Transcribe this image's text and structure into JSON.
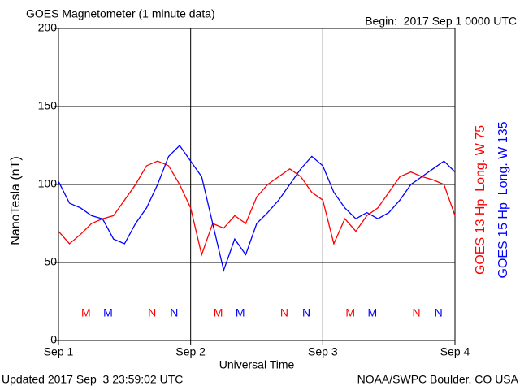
{
  "chart_data": {
    "type": "line",
    "title": "GOES Magnetometer (1 minute data)",
    "subtitle": "Begin:  2017 Sep 1 0000 UTC",
    "y_label": "NanoTesla (nT)",
    "x_label": "Universal Time",
    "footer_left": "Updated 2017 Sep  3 23:59:02 UTC",
    "footer_right": "NOAA/SWPC Boulder, CO USA",
    "xlim": [
      0,
      72
    ],
    "xticks": [
      {
        "value": 0,
        "label": "Sep 1"
      },
      {
        "value": 24,
        "label": "Sep 2"
      },
      {
        "value": 48,
        "label": "Sep 3"
      },
      {
        "value": 72,
        "label": "Sep 4"
      }
    ],
    "ylim": [
      0,
      200
    ],
    "yticks": [
      0,
      50,
      100,
      150,
      200
    ],
    "grid": true,
    "x": [
      0,
      2,
      4,
      6,
      8,
      10,
      12,
      14,
      16,
      18,
      20,
      22,
      24,
      26,
      28,
      30,
      32,
      34,
      36,
      38,
      40,
      42,
      44,
      46,
      48,
      50,
      52,
      54,
      56,
      58,
      60,
      62,
      64,
      66,
      68,
      70,
      72
    ],
    "series": [
      {
        "name": "GOES 13 Hp  Long. W 75",
        "color": "#ff0000",
        "values": [
          70,
          62,
          68,
          75,
          78,
          80,
          90,
          100,
          112,
          115,
          112,
          100,
          85,
          55,
          75,
          72,
          80,
          75,
          92,
          100,
          105,
          110,
          105,
          95,
          90,
          62,
          78,
          70,
          80,
          85,
          95,
          105,
          108,
          105,
          103,
          100,
          80
        ]
      },
      {
        "name": "GOES 15 Hp  Long. W 135",
        "color": "#0000ff",
        "values": [
          102,
          88,
          85,
          80,
          78,
          65,
          62,
          75,
          85,
          100,
          118,
          125,
          115,
          105,
          75,
          45,
          65,
          55,
          75,
          82,
          90,
          100,
          110,
          118,
          112,
          95,
          85,
          78,
          82,
          78,
          82,
          90,
          100,
          105,
          110,
          115,
          108
        ]
      }
    ],
    "annotations": [
      {
        "text": "M",
        "x": 5,
        "series": 0
      },
      {
        "text": "M",
        "x": 9,
        "series": 1
      },
      {
        "text": "N",
        "x": 17,
        "series": 0
      },
      {
        "text": "N",
        "x": 21,
        "series": 1
      },
      {
        "text": "M",
        "x": 29,
        "series": 0
      },
      {
        "text": "M",
        "x": 33,
        "series": 1
      },
      {
        "text": "N",
        "x": 41,
        "series": 0
      },
      {
        "text": "N",
        "x": 45,
        "series": 1
      },
      {
        "text": "M",
        "x": 53,
        "series": 0
      },
      {
        "text": "M",
        "x": 57,
        "series": 1
      },
      {
        "text": "N",
        "x": 65,
        "series": 0
      },
      {
        "text": "N",
        "x": 69,
        "series": 1
      }
    ]
  }
}
